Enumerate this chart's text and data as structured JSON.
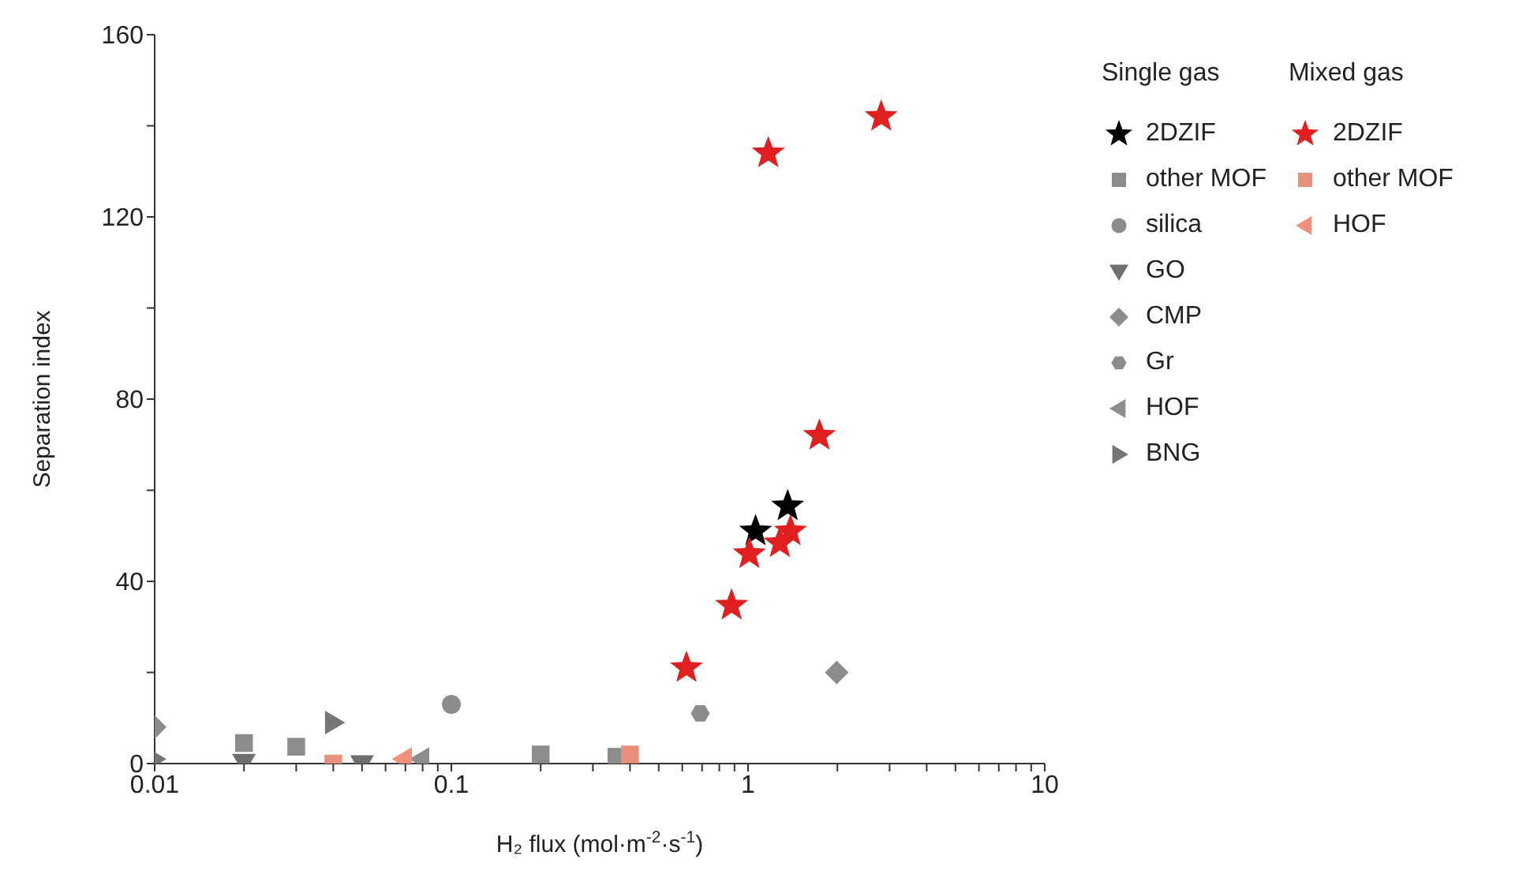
{
  "chart_data": {
    "type": "scatter",
    "xlabel": "H₂ flux (mol·m$^{-2}$·s$^{-1}$)",
    "ylabel": "Separation index",
    "log": "x",
    "legend": "right",
    "legend_title": "Single gas",
    "annotations": [
      "Mixed gas"
    ],
    "xlim": [
      0.01,
      10
    ],
    "xticks": [
      0.01,
      {
        "value": 0.02,
        "label": null
      },
      {
        "value": 0.03,
        "label": null
      },
      {
        "value": 0.04,
        "label": null
      },
      {
        "value": 0.05,
        "label": null
      },
      {
        "value": 0.06,
        "label": null
      },
      {
        "value": 0.07,
        "label": null
      },
      {
        "value": 0.08,
        "label": null
      },
      {
        "value": 0.09,
        "label": null
      },
      0.1,
      {
        "value": 0.2,
        "label": null
      },
      {
        "value": 0.3,
        "label": null
      },
      {
        "value": 0.4,
        "label": null
      },
      {
        "value": 0.5,
        "label": null
      },
      {
        "value": 0.6,
        "label": null
      },
      {
        "value": 0.7,
        "label": null
      },
      {
        "value": 0.8,
        "label": null
      },
      {
        "value": 0.9,
        "label": null
      },
      1,
      {
        "value": 2,
        "label": null
      },
      {
        "value": 3,
        "label": null
      },
      {
        "value": 4,
        "label": null
      },
      {
        "value": 5,
        "label": null
      },
      {
        "value": 6,
        "label": null
      },
      {
        "value": 7,
        "label": null
      },
      {
        "value": 8,
        "label": null
      },
      {
        "value": 9,
        "label": null
      },
      10
    ],
    "ylim": [
      0,
      160
    ],
    "yticks": [
      0,
      {
        "value": 20,
        "label": null
      },
      40,
      {
        "value": 60,
        "label": null
      },
      80,
      {
        "value": 100,
        "label": null
      },
      120,
      {
        "value": 140,
        "label": null
      },
      160
    ],
    "series": [
      {
        "name": "2DZIF",
        "color": "#000000",
        "marker": "star",
        "x": [
          1.06,
          1.36
        ],
        "values": [
          51,
          56.5
        ]
      },
      {
        "name": "other MOF",
        "color": "#8c8c8c",
        "marker": "square",
        "x": [
          0.02,
          0.03,
          0.2,
          0.36
        ],
        "values": [
          4.5,
          3.7,
          2,
          1.5
        ]
      },
      {
        "name": "silica",
        "color": "#8c8c8c",
        "marker": "circle",
        "x": [
          0.1
        ],
        "values": [
          13
        ]
      },
      {
        "name": "GO",
        "color": "#6e6e6e",
        "marker": "triangle-down",
        "x": [
          0.02,
          0.05
        ],
        "values": [
          0.3,
          0
        ]
      },
      {
        "name": "CMP",
        "color": "#8c8c8c",
        "marker": "diamond",
        "x": [
          0.01,
          1.99
        ],
        "values": [
          8,
          20
        ]
      },
      {
        "name": "Gr",
        "color": "#8c8c8c",
        "x": [
          0.69
        ],
        "values": [
          11
        ]
      },
      {
        "name": "HOF",
        "color": "#8c8c8c",
        "marker": "triangle-left",
        "x": [
          0.079
        ],
        "values": [
          1
        ]
      },
      {
        "name": "BNG",
        "color": "#767676",
        "marker": "triangle-right",
        "x": [
          0.01,
          0.04
        ],
        "values": [
          1,
          9
        ]
      },
      {
        "name": "2DZIF",
        "color": "#e02020",
        "marker": "star",
        "x": [
          2.81,
          1.17,
          1.74,
          1.39,
          1.28,
          1.01,
          0.88,
          0.62
        ],
        "values": [
          142,
          134,
          72,
          51,
          48.4,
          46,
          34.7,
          21
        ]
      },
      {
        "name": "other MOF",
        "color": "#e8907c",
        "marker": "square",
        "x": [
          0.04,
          0.4
        ],
        "values": [
          0,
          2
        ]
      },
      {
        "name": "HOF",
        "color": "#f0907a",
        "marker": "triangle-left",
        "x": [
          0.069
        ],
        "values": [
          1
        ]
      }
    ]
  }
}
